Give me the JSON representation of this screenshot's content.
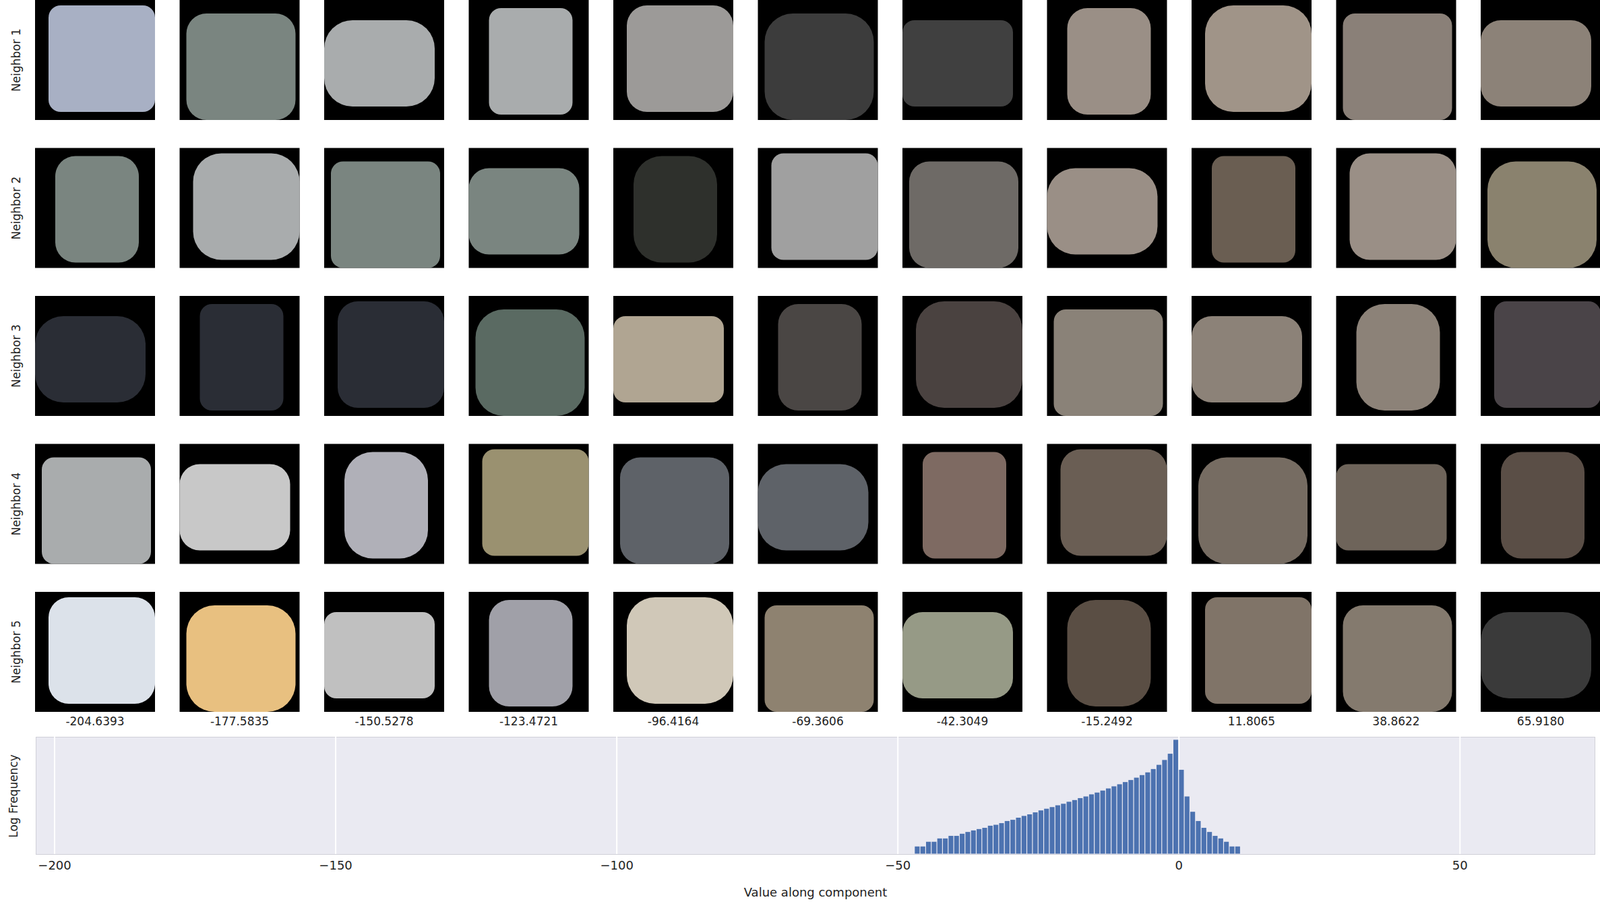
{
  "chart_data": {
    "type": "histogram",
    "xlabel": "Value along component",
    "ylabel": "Log Frequency",
    "bins": [
      -47,
      -46,
      -45,
      -44,
      -43,
      -42,
      -41,
      -40,
      -39,
      -38,
      -37,
      -36,
      -35,
      -34,
      -33,
      -32,
      -31,
      -30,
      -29,
      -28,
      -27,
      -26,
      -25,
      -24,
      -23,
      -22,
      -21,
      -20,
      -19,
      -18,
      -17,
      -16,
      -15,
      -14,
      -13,
      -12,
      -11,
      -10,
      -9,
      -8,
      -7,
      -6,
      -5,
      -4,
      -3,
      -2,
      -1,
      0,
      1,
      2,
      3,
      4,
      5,
      6,
      7,
      8,
      9,
      10,
      11,
      12
    ],
    "counts": [
      2,
      2,
      3,
      3,
      4,
      4,
      5,
      5,
      6,
      7,
      8,
      9,
      10,
      12,
      13,
      15,
      18,
      20,
      24,
      28,
      32,
      38,
      45,
      52,
      60,
      70,
      80,
      95,
      110,
      130,
      150,
      180,
      210,
      250,
      300,
      360,
      430,
      520,
      620,
      760,
      950,
      1200,
      1600,
      2300,
      3500,
      6000,
      20000,
      1500,
      150,
      40,
      18,
      10,
      7,
      5,
      4,
      3,
      2,
      2,
      1
    ],
    "color": "#4c72b0",
    "xlim": [
      -203.3,
      74
    ],
    "xticks": [
      -200,
      -150,
      -100,
      -50,
      0,
      50
    ],
    "ylim": [
      1,
      25000
    ],
    "log": "y",
    "grid": true,
    "tick_labels": "x"
  },
  "neighbors": {
    "row_labels": [
      "Neighbor 1",
      "Neighbor 2",
      "Neighbor 3",
      "Neighbor 4",
      "Neighbor 5"
    ],
    "column_values": [
      -204.6393,
      -177.5835,
      -150.5278,
      -123.4721,
      -96.4164,
      -69.3606,
      -42.3049,
      -15.2492,
      11.8065,
      38.8622,
      65.918
    ],
    "patch_colors": [
      [
        "#a8b0c4",
        "#7a8580",
        "#a9acad",
        "#a9acad",
        "#9c9a98",
        "#3c3c3c",
        "#404040",
        "#9a8f86",
        "#a09488",
        "#8a8078",
        "#8c8278"
      ],
      [
        "#7a8580",
        "#a9acad",
        "#7a8580",
        "#7a8580",
        "#2e302c",
        "#a0a0a0",
        "#6e6a66",
        "#9a8f86",
        "#6a5e52",
        "#9a8f86",
        "#8a826e"
      ],
      [
        "#2a2d35",
        "#2a2d35",
        "#2a2d35",
        "#5a6a62",
        "#b0a592",
        "#4a4644",
        "#4a4240",
        "#8a8278",
        "#8c8278",
        "#8c8278",
        "#4a4448"
      ],
      [
        "#a9acad",
        "#c8c8c8",
        "#b0b0b8",
        "#9a9170",
        "#5e6268",
        "#5e6268",
        "#7e6a62",
        "#6a5e54",
        "#766c62",
        "#6e645a",
        "#5a4e46"
      ],
      [
        "#dce2ea",
        "#e8c080",
        "#c0c0c0",
        "#a0a0a8",
        "#d0c8b8",
        "#8e8270",
        "#969a86",
        "#5a4e44",
        "#807468",
        "#847a6e",
        "#3a3a3a"
      ]
    ]
  }
}
